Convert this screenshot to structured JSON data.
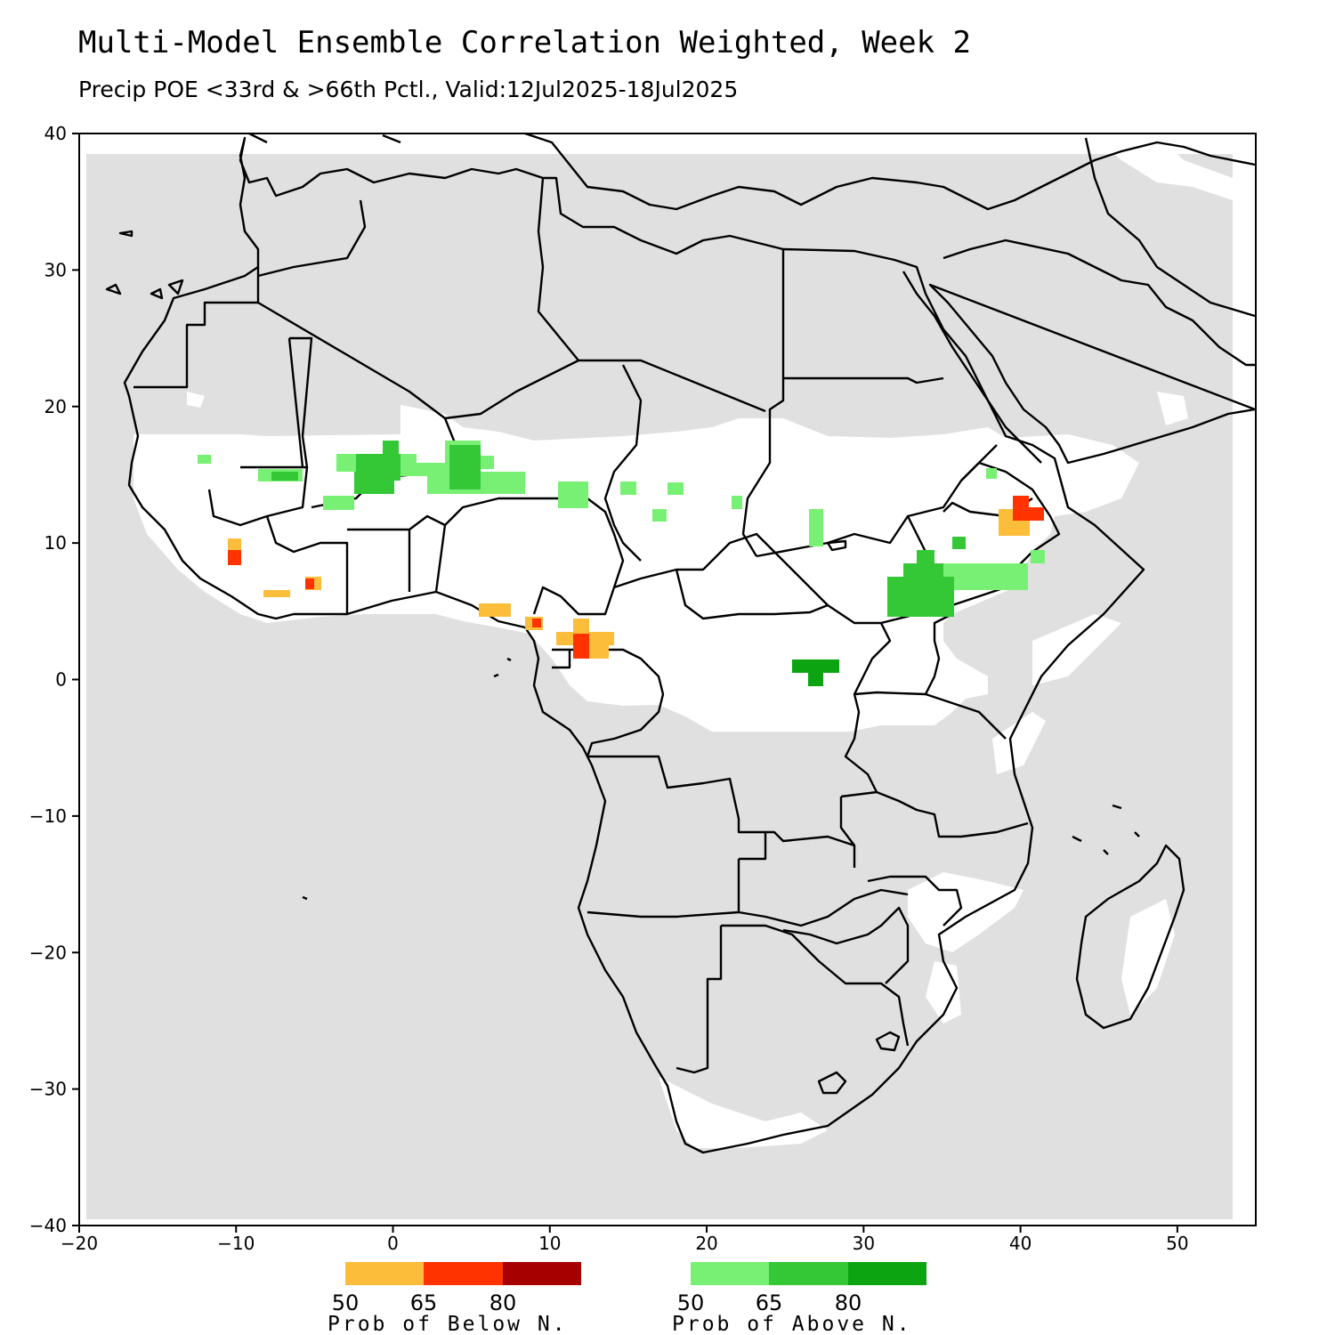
{
  "header": {
    "title": "Multi-Model Ensemble Correlation Weighted, Week 2",
    "subtitle": "Precip POE <33rd & >66th Pctl., Valid:12Jul2025-18Jul2025"
  },
  "map": {
    "region": "Africa",
    "lon_range": [
      -20,
      55
    ],
    "lat_range": [
      -40,
      40
    ],
    "x_ticks": [
      "-20",
      "-10",
      "0",
      "10",
      "20",
      "30",
      "40",
      "50"
    ],
    "y_ticks": [
      "40",
      "30",
      "20",
      "10",
      "0",
      "-10",
      "-20",
      "-30",
      "-40"
    ],
    "colors": {
      "no_skill_gray": "#e0e0e0",
      "below_50": "#fcbd3a",
      "below_65": "#fe3300",
      "below_80": "#a70000",
      "above_50": "#78f073",
      "above_65": "#34c837",
      "above_80": "#0da412"
    }
  },
  "legend": {
    "below": {
      "ticks": [
        "50",
        "65",
        "80"
      ],
      "caption": "Prob of Below N.",
      "colors": [
        "#fcbd3a",
        "#fe3300",
        "#a70000"
      ]
    },
    "above": {
      "ticks": [
        "50",
        "65",
        "80"
      ],
      "caption": "Prob of Above N.",
      "colors": [
        "#78f073",
        "#34c837",
        "#0da412"
      ]
    }
  }
}
